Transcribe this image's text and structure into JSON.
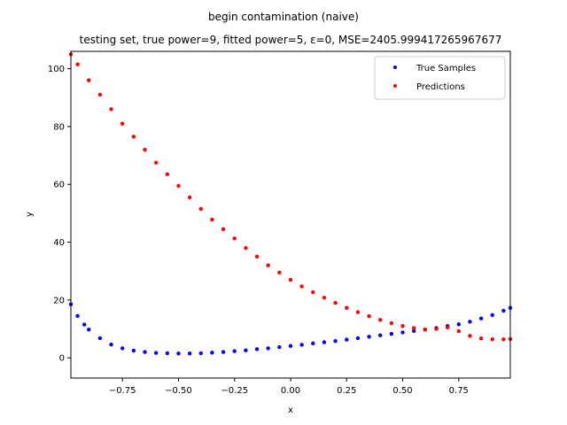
{
  "chart_data": {
    "type": "scatter",
    "title": "begin contamination (naive)",
    "subtitle": "testing set, true power=9, fitted power=5, ε=0, MSE=2405.999417265967677",
    "xlabel": "x",
    "ylabel": "y",
    "xlim": [
      -0.98,
      0.98
    ],
    "ylim": [
      -7,
      106
    ],
    "x_ticks": [
      -0.75,
      -0.5,
      -0.25,
      0.0,
      0.25,
      0.5,
      0.75
    ],
    "x_tick_labels": [
      "−0.75",
      "−0.50",
      "−0.25",
      "0.00",
      "0.25",
      "0.50",
      "0.75"
    ],
    "y_ticks": [
      0,
      20,
      40,
      60,
      80,
      100
    ],
    "y_tick_labels": [
      "0",
      "20",
      "40",
      "60",
      "80",
      "100"
    ],
    "grid": false,
    "legend_position": "top-right",
    "series": [
      {
        "name": "True Samples",
        "color": "#0000ff",
        "x": [
          -0.98,
          -0.95,
          -0.92,
          -0.9,
          -0.85,
          -0.8,
          -0.75,
          -0.7,
          -0.65,
          -0.6,
          -0.55,
          -0.5,
          -0.45,
          -0.4,
          -0.35,
          -0.3,
          -0.25,
          -0.2,
          -0.15,
          -0.1,
          -0.05,
          0.0,
          0.05,
          0.1,
          0.15,
          0.2,
          0.25,
          0.3,
          0.35,
          0.4,
          0.45,
          0.5,
          0.55,
          0.6,
          0.65,
          0.7,
          0.75,
          0.8,
          0.85,
          0.9,
          0.95,
          0.98
        ],
        "y": [
          18.5,
          14.5,
          11.5,
          9.8,
          6.8,
          4.6,
          3.3,
          2.5,
          2.0,
          1.7,
          1.6,
          1.5,
          1.5,
          1.6,
          1.8,
          2.0,
          2.3,
          2.6,
          3.0,
          3.3,
          3.7,
          4.1,
          4.5,
          5.0,
          5.4,
          5.8,
          6.3,
          6.8,
          7.3,
          7.8,
          8.3,
          8.8,
          9.3,
          9.8,
          10.3,
          11.0,
          11.6,
          12.5,
          13.6,
          14.8,
          16.3,
          17.3
        ]
      },
      {
        "name": "Predictions",
        "color": "#ff0000",
        "x": [
          -0.98,
          -0.95,
          -0.9,
          -0.85,
          -0.8,
          -0.75,
          -0.7,
          -0.65,
          -0.6,
          -0.55,
          -0.5,
          -0.45,
          -0.4,
          -0.35,
          -0.3,
          -0.25,
          -0.2,
          -0.15,
          -0.1,
          -0.05,
          0.0,
          0.05,
          0.1,
          0.15,
          0.2,
          0.25,
          0.3,
          0.35,
          0.4,
          0.45,
          0.5,
          0.55,
          0.6,
          0.65,
          0.7,
          0.75,
          0.8,
          0.85,
          0.9,
          0.95,
          0.98
        ],
        "y": [
          105.0,
          101.5,
          96.0,
          91.0,
          86.0,
          81.0,
          76.5,
          72.0,
          67.5,
          63.5,
          59.5,
          55.5,
          51.5,
          47.8,
          44.5,
          41.3,
          38.0,
          35.0,
          32.0,
          29.5,
          27.0,
          24.7,
          22.7,
          20.8,
          19.0,
          17.3,
          15.8,
          14.4,
          13.1,
          12.0,
          11.0,
          10.3,
          9.8,
          10.0,
          10.5,
          9.2,
          7.6,
          6.7,
          6.4,
          6.4,
          6.5
        ]
      }
    ]
  }
}
